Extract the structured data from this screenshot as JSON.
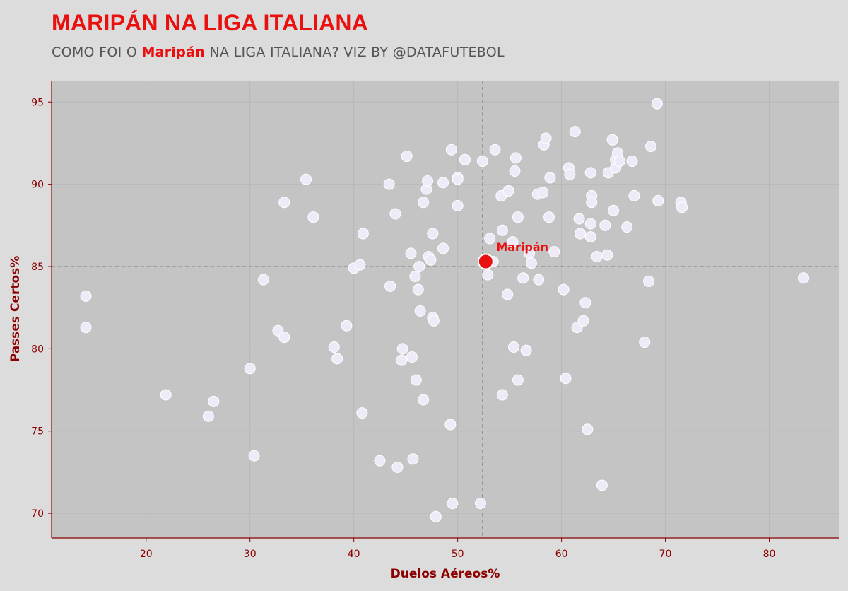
{
  "header": {
    "title": "MARIPÁN NA LIGA ITALIANA",
    "subtitle_before": "COMO FOI O ",
    "subtitle_highlight": "Maripán",
    "subtitle_after": " NA LIGA ITALIANA? VIZ BY @DATAFUTEBOL"
  },
  "colors": {
    "background": "#dcdcdc",
    "plot_background": "#c4c4c4",
    "accent": "#e8110f",
    "axis": "#8b0000",
    "points": "#eeeaf8"
  },
  "chart_data": {
    "type": "scatter",
    "xlabel": "Duelos Aéreos%",
    "ylabel": "Passes Certos%",
    "xlim": [
      10.9,
      86.7
    ],
    "ylim": [
      68.5,
      96.3
    ],
    "xticks": [
      20,
      30,
      40,
      50,
      60,
      70,
      80
    ],
    "yticks": [
      70,
      75,
      80,
      85,
      90,
      95
    ],
    "grid": true,
    "reference_lines": {
      "x": 52.4,
      "y": 85.0
    },
    "highlight": {
      "label": "Maripán",
      "x": 52.7,
      "y": 85.3
    },
    "points": [
      [
        14.2,
        83.2
      ],
      [
        14.2,
        81.3
      ],
      [
        21.9,
        77.2
      ],
      [
        26.0,
        75.9
      ],
      [
        26.5,
        76.8
      ],
      [
        30.0,
        78.8
      ],
      [
        30.4,
        73.5
      ],
      [
        31.3,
        84.2
      ],
      [
        32.7,
        81.1
      ],
      [
        33.3,
        80.7
      ],
      [
        33.3,
        88.9
      ],
      [
        35.4,
        90.3
      ],
      [
        36.1,
        88.0
      ],
      [
        38.1,
        80.1
      ],
      [
        38.4,
        79.4
      ],
      [
        39.3,
        81.4
      ],
      [
        40.0,
        84.9
      ],
      [
        40.6,
        85.1
      ],
      [
        40.8,
        76.1
      ],
      [
        40.9,
        87.0
      ],
      [
        42.5,
        73.2
      ],
      [
        43.4,
        90.0
      ],
      [
        43.5,
        83.8
      ],
      [
        44.0,
        88.2
      ],
      [
        44.2,
        72.8
      ],
      [
        44.6,
        79.3
      ],
      [
        44.7,
        80.0
      ],
      [
        45.1,
        91.7
      ],
      [
        45.5,
        85.8
      ],
      [
        45.6,
        79.5
      ],
      [
        45.7,
        73.3
      ],
      [
        45.9,
        84.4
      ],
      [
        46.0,
        78.1
      ],
      [
        46.2,
        83.6
      ],
      [
        46.3,
        85.0
      ],
      [
        46.4,
        82.3
      ],
      [
        46.7,
        88.9
      ],
      [
        46.7,
        76.9
      ],
      [
        47.0,
        89.7
      ],
      [
        47.1,
        90.2
      ],
      [
        47.2,
        85.6
      ],
      [
        47.4,
        85.4
      ],
      [
        47.6,
        81.9
      ],
      [
        47.6,
        87.0
      ],
      [
        47.7,
        81.7
      ],
      [
        47.9,
        69.8
      ],
      [
        48.6,
        86.1
      ],
      [
        48.6,
        90.1
      ],
      [
        49.3,
        75.4
      ],
      [
        49.4,
        92.1
      ],
      [
        49.5,
        70.6
      ],
      [
        50.0,
        90.4
      ],
      [
        50.0,
        90.3
      ],
      [
        50.0,
        88.7
      ],
      [
        50.7,
        91.5
      ],
      [
        52.2,
        70.6
      ],
      [
        52.4,
        91.4
      ],
      [
        52.9,
        84.5
      ],
      [
        53.1,
        86.7
      ],
      [
        53.4,
        85.3
      ],
      [
        53.6,
        92.1
      ],
      [
        54.2,
        89.3
      ],
      [
        54.3,
        87.2
      ],
      [
        54.3,
        77.2
      ],
      [
        54.8,
        83.3
      ],
      [
        54.9,
        89.6
      ],
      [
        55.3,
        86.5
      ],
      [
        55.4,
        80.1
      ],
      [
        55.5,
        90.8
      ],
      [
        55.6,
        91.6
      ],
      [
        55.8,
        88.0
      ],
      [
        55.8,
        78.1
      ],
      [
        56.3,
        84.3
      ],
      [
        56.6,
        79.9
      ],
      [
        56.9,
        85.8
      ],
      [
        57.1,
        85.2
      ],
      [
        57.7,
        89.4
      ],
      [
        57.8,
        84.2
      ],
      [
        58.2,
        89.5
      ],
      [
        58.3,
        92.4
      ],
      [
        58.5,
        92.8
      ],
      [
        58.8,
        88.0
      ],
      [
        58.9,
        90.4
      ],
      [
        59.3,
        85.9
      ],
      [
        60.2,
        83.6
      ],
      [
        60.4,
        78.2
      ],
      [
        60.7,
        91.0
      ],
      [
        60.8,
        90.6
      ],
      [
        61.3,
        93.2
      ],
      [
        61.5,
        81.3
      ],
      [
        61.7,
        87.9
      ],
      [
        61.8,
        87.0
      ],
      [
        62.1,
        81.7
      ],
      [
        62.3,
        82.8
      ],
      [
        62.5,
        75.1
      ],
      [
        62.8,
        90.7
      ],
      [
        62.8,
        87.6
      ],
      [
        62.8,
        86.8
      ],
      [
        62.9,
        89.3
      ],
      [
        62.9,
        88.9
      ],
      [
        63.4,
        85.6
      ],
      [
        63.9,
        71.7
      ],
      [
        64.2,
        87.5
      ],
      [
        64.4,
        85.7
      ],
      [
        64.5,
        90.7
      ],
      [
        64.9,
        92.7
      ],
      [
        65.0,
        88.4
      ],
      [
        65.2,
        91.0
      ],
      [
        65.2,
        91.5
      ],
      [
        65.4,
        91.9
      ],
      [
        65.6,
        91.4
      ],
      [
        66.3,
        87.4
      ],
      [
        66.8,
        91.4
      ],
      [
        67.0,
        89.3
      ],
      [
        68.0,
        80.4
      ],
      [
        68.4,
        84.1
      ],
      [
        68.6,
        92.3
      ],
      [
        69.2,
        94.9
      ],
      [
        69.3,
        89.0
      ],
      [
        71.5,
        88.9
      ],
      [
        71.6,
        88.6
      ],
      [
        83.3,
        84.3
      ]
    ]
  }
}
